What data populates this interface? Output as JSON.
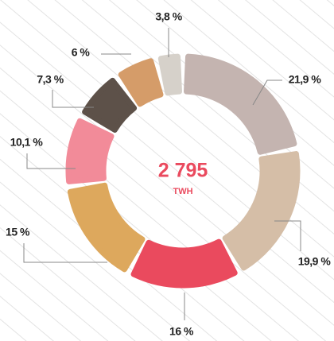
{
  "chart_data": {
    "type": "donut",
    "values": [
      21.9,
      19.9,
      16,
      15,
      10.1,
      7.3,
      6,
      3.8
    ],
    "value_labels": [
      "21,9 %",
      "19,9 %",
      "16 %",
      "15 %",
      "10,1 %",
      "7,3 %",
      "6 %",
      "3,8 %"
    ],
    "colors": [
      "#c4b4b0",
      "#d5bea7",
      "#ea4a5e",
      "#dda85d",
      "#f28b99",
      "#5d5149",
      "#d59c69",
      "#d6d1ca"
    ],
    "center_text": "2 795",
    "center_unit": "TWH"
  }
}
